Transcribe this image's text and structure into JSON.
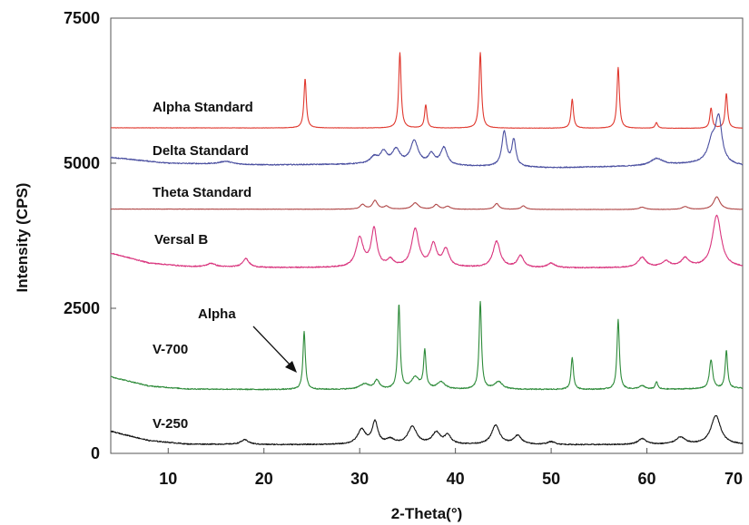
{
  "chart_data": {
    "type": "line",
    "xlabel": "2-Theta(°)",
    "ylabel": "Intensity (CPS)",
    "xlim": [
      4,
      70
    ],
    "ylim": [
      0,
      7500
    ],
    "x_ticks": [
      10,
      20,
      30,
      40,
      50,
      60,
      70
    ],
    "y_ticks": [
      0,
      2500,
      5000,
      7500
    ],
    "x_tick_labels": [
      "10",
      "20",
      "30",
      "40",
      "50",
      "60",
      "70"
    ],
    "y_tick_labels": [
      "0",
      "2500",
      "5000",
      "7500"
    ],
    "grid": false,
    "annotation": {
      "text": "Alpha",
      "x": 24.3,
      "y": 1200
    },
    "series": [
      {
        "name": "Alpha Standard",
        "color": "#e0382e",
        "baseline": [
          [
            4,
            5610
          ],
          [
            70,
            5600
          ]
        ],
        "peaks": [
          {
            "x": 24.3,
            "height": 850,
            "width": 0.15
          },
          {
            "x": 34.2,
            "height": 1300,
            "width": 0.15
          },
          {
            "x": 36.9,
            "height": 400,
            "width": 0.15
          },
          {
            "x": 42.6,
            "height": 1300,
            "width": 0.15
          },
          {
            "x": 52.2,
            "height": 500,
            "width": 0.15
          },
          {
            "x": 57.0,
            "height": 1050,
            "width": 0.15
          },
          {
            "x": 61.0,
            "height": 100,
            "width": 0.15
          },
          {
            "x": 66.7,
            "height": 350,
            "width": 0.15
          },
          {
            "x": 68.3,
            "height": 600,
            "width": 0.15
          }
        ]
      },
      {
        "name": "Delta Standard",
        "color": "#4a4fa0",
        "baseline": [
          [
            4,
            5100
          ],
          [
            10,
            5000
          ],
          [
            20,
            4970
          ],
          [
            30,
            4980
          ],
          [
            40,
            4950
          ],
          [
            50,
            4920
          ],
          [
            60,
            4950
          ],
          [
            66,
            5000
          ],
          [
            70,
            4950
          ]
        ],
        "peaks": [
          {
            "x": 16.0,
            "height": 50,
            "width": 0.8
          },
          {
            "x": 31.5,
            "height": 120,
            "width": 0.5
          },
          {
            "x": 32.5,
            "height": 200,
            "width": 0.4
          },
          {
            "x": 33.8,
            "height": 250,
            "width": 0.5
          },
          {
            "x": 35.7,
            "height": 400,
            "width": 0.5
          },
          {
            "x": 37.5,
            "height": 180,
            "width": 0.4
          },
          {
            "x": 38.8,
            "height": 300,
            "width": 0.4
          },
          {
            "x": 45.1,
            "height": 600,
            "width": 0.3
          },
          {
            "x": 46.1,
            "height": 450,
            "width": 0.25
          },
          {
            "x": 61.0,
            "height": 120,
            "width": 0.8
          },
          {
            "x": 66.8,
            "height": 350,
            "width": 0.5
          },
          {
            "x": 67.5,
            "height": 750,
            "width": 0.4
          }
        ]
      },
      {
        "name": "Theta Standard",
        "color": "#b04848",
        "baseline": [
          [
            4,
            4210
          ],
          [
            70,
            4200
          ]
        ],
        "peaks": [
          {
            "x": 30.3,
            "height": 80,
            "width": 0.3
          },
          {
            "x": 31.6,
            "height": 150,
            "width": 0.3
          },
          {
            "x": 32.8,
            "height": 50,
            "width": 0.3
          },
          {
            "x": 35.8,
            "height": 110,
            "width": 0.4
          },
          {
            "x": 38.0,
            "height": 80,
            "width": 0.3
          },
          {
            "x": 39.2,
            "height": 50,
            "width": 0.3
          },
          {
            "x": 44.3,
            "height": 100,
            "width": 0.3
          },
          {
            "x": 47.1,
            "height": 60,
            "width": 0.3
          },
          {
            "x": 59.5,
            "height": 40,
            "width": 0.4
          },
          {
            "x": 64.0,
            "height": 50,
            "width": 0.4
          },
          {
            "x": 67.3,
            "height": 220,
            "width": 0.4
          }
        ]
      },
      {
        "name": "Versal B",
        "color": "#d9357e",
        "baseline": [
          [
            4,
            3450
          ],
          [
            8,
            3280
          ],
          [
            12,
            3220
          ],
          [
            20,
            3200
          ],
          [
            30,
            3200
          ],
          [
            40,
            3200
          ],
          [
            50,
            3190
          ],
          [
            60,
            3200
          ],
          [
            70,
            3200
          ]
        ],
        "peaks": [
          {
            "x": 14.5,
            "height": 60,
            "width": 0.5
          },
          {
            "x": 18.1,
            "height": 150,
            "width": 0.4
          },
          {
            "x": 30.0,
            "height": 500,
            "width": 0.45
          },
          {
            "x": 31.5,
            "height": 650,
            "width": 0.35
          },
          {
            "x": 33.2,
            "height": 120,
            "width": 0.4
          },
          {
            "x": 35.8,
            "height": 650,
            "width": 0.45
          },
          {
            "x": 37.7,
            "height": 380,
            "width": 0.4
          },
          {
            "x": 39.0,
            "height": 300,
            "width": 0.4
          },
          {
            "x": 44.3,
            "height": 450,
            "width": 0.45
          },
          {
            "x": 46.8,
            "height": 200,
            "width": 0.4
          },
          {
            "x": 50.0,
            "height": 80,
            "width": 0.5
          },
          {
            "x": 59.5,
            "height": 170,
            "width": 0.5
          },
          {
            "x": 62.0,
            "height": 100,
            "width": 0.5
          },
          {
            "x": 64.0,
            "height": 150,
            "width": 0.5
          },
          {
            "x": 67.3,
            "height": 900,
            "width": 0.55
          }
        ]
      },
      {
        "name": "V-700",
        "color": "#2e8b3a",
        "baseline": [
          [
            4,
            1320
          ],
          [
            8,
            1160
          ],
          [
            12,
            1110
          ],
          [
            20,
            1100
          ],
          [
            30,
            1100
          ],
          [
            40,
            1100
          ],
          [
            50,
            1100
          ],
          [
            60,
            1100
          ],
          [
            70,
            1120
          ]
        ],
        "peaks": [
          {
            "x": 24.2,
            "height": 1000,
            "width": 0.15
          },
          {
            "x": 30.5,
            "height": 90,
            "width": 0.6
          },
          {
            "x": 31.8,
            "height": 150,
            "width": 0.3
          },
          {
            "x": 34.1,
            "height": 1450,
            "width": 0.15
          },
          {
            "x": 35.8,
            "height": 200,
            "width": 0.5
          },
          {
            "x": 36.8,
            "height": 650,
            "width": 0.15
          },
          {
            "x": 38.5,
            "height": 120,
            "width": 0.5
          },
          {
            "x": 42.6,
            "height": 1500,
            "width": 0.15
          },
          {
            "x": 44.5,
            "height": 130,
            "width": 0.5
          },
          {
            "x": 52.2,
            "height": 550,
            "width": 0.15
          },
          {
            "x": 57.0,
            "height": 1200,
            "width": 0.15
          },
          {
            "x": 59.5,
            "height": 60,
            "width": 0.4
          },
          {
            "x": 61.0,
            "height": 130,
            "width": 0.15
          },
          {
            "x": 66.7,
            "height": 500,
            "width": 0.2
          },
          {
            "x": 68.3,
            "height": 650,
            "width": 0.15
          }
        ]
      },
      {
        "name": "V-250",
        "color": "#111111",
        "baseline": [
          [
            4,
            380
          ],
          [
            8,
            220
          ],
          [
            12,
            160
          ],
          [
            20,
            150
          ],
          [
            30,
            150
          ],
          [
            40,
            150
          ],
          [
            50,
            145
          ],
          [
            60,
            150
          ],
          [
            70,
            150
          ]
        ],
        "peaks": [
          {
            "x": 18.0,
            "height": 80,
            "width": 0.5
          },
          {
            "x": 30.2,
            "height": 250,
            "width": 0.5
          },
          {
            "x": 31.6,
            "height": 380,
            "width": 0.35
          },
          {
            "x": 33.2,
            "height": 80,
            "width": 0.5
          },
          {
            "x": 35.5,
            "height": 300,
            "width": 0.55
          },
          {
            "x": 38.0,
            "height": 200,
            "width": 0.5
          },
          {
            "x": 39.2,
            "height": 150,
            "width": 0.4
          },
          {
            "x": 44.2,
            "height": 330,
            "width": 0.5
          },
          {
            "x": 46.5,
            "height": 150,
            "width": 0.5
          },
          {
            "x": 50.0,
            "height": 50,
            "width": 0.5
          },
          {
            "x": 59.5,
            "height": 100,
            "width": 0.5
          },
          {
            "x": 63.5,
            "height": 120,
            "width": 0.6
          },
          {
            "x": 67.2,
            "height": 500,
            "width": 0.6
          }
        ]
      }
    ]
  }
}
